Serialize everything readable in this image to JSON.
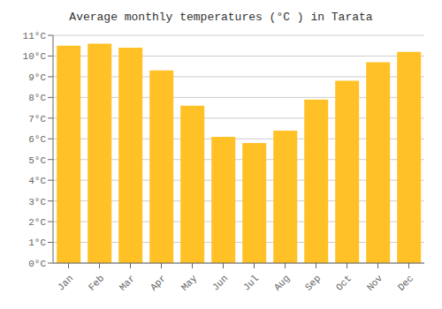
{
  "chart_data": {
    "type": "bar",
    "title": "Average monthly temperatures (°C ) in Tarata",
    "categories": [
      "Jan",
      "Feb",
      "Mar",
      "Apr",
      "May",
      "Jun",
      "Jul",
      "Aug",
      "Sep",
      "Oct",
      "Nov",
      "Dec"
    ],
    "values": [
      10.5,
      10.6,
      10.4,
      9.3,
      7.6,
      6.1,
      5.8,
      6.4,
      7.9,
      8.8,
      9.7,
      10.2
    ],
    "color": "#FFC125",
    "ylim": [
      0,
      11
    ],
    "yticks": [
      {
        "value": 0,
        "label": "0°C"
      },
      {
        "value": 1,
        "label": "1°C"
      },
      {
        "value": 2,
        "label": "2°C"
      },
      {
        "value": 3,
        "label": "3°C"
      },
      {
        "value": 4,
        "label": "4°C"
      },
      {
        "value": 5,
        "label": "5°C"
      },
      {
        "value": 6,
        "label": "6°C"
      },
      {
        "value": 7,
        "label": "7°C"
      },
      {
        "value": 8,
        "label": "8°C"
      },
      {
        "value": 9,
        "label": "9°C"
      },
      {
        "value": 10,
        "label": "10°C"
      },
      {
        "value": 11,
        "label": "11°C"
      }
    ],
    "grid": true
  }
}
